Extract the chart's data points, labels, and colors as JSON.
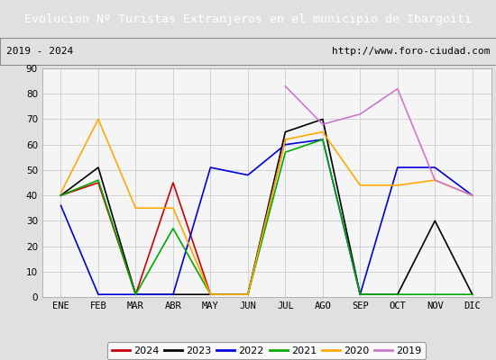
{
  "title": "Evolucion Nº Turistas Extranjeros en el municipio de Ibargoiti",
  "subtitle_left": "2019 - 2024",
  "subtitle_right": "http://www.foro-ciudad.com",
  "title_bg": "#4472c4",
  "title_color": "white",
  "months": [
    "ENE",
    "FEB",
    "MAR",
    "ABR",
    "MAY",
    "JUN",
    "JUL",
    "AGO",
    "SEP",
    "OCT",
    "NOV",
    "DIC"
  ],
  "ylim": [
    0,
    90
  ],
  "yticks": [
    0,
    10,
    20,
    30,
    40,
    50,
    60,
    70,
    80,
    90
  ],
  "series": {
    "2024": {
      "color": "#cc0000",
      "data": [
        40,
        45,
        1,
        45,
        1,
        1,
        62,
        null,
        null,
        null,
        null,
        null
      ]
    },
    "2023": {
      "color": "#000000",
      "data": [
        40,
        51,
        1,
        1,
        1,
        1,
        65,
        70,
        1,
        1,
        30,
        1
      ]
    },
    "2022": {
      "color": "#0000dd",
      "data": [
        36,
        1,
        1,
        1,
        51,
        48,
        60,
        62,
        1,
        51,
        51,
        40
      ]
    },
    "2021": {
      "color": "#00aa00",
      "data": [
        40,
        46,
        1,
        27,
        1,
        1,
        57,
        62,
        1,
        1,
        1,
        1
      ]
    },
    "2020": {
      "color": "#ffaa00",
      "data": [
        41,
        70,
        35,
        35,
        1,
        1,
        62,
        65,
        44,
        44,
        46,
        40
      ]
    },
    "2019": {
      "color": "#cc77cc",
      "data": [
        null,
        null,
        null,
        null,
        null,
        null,
        83,
        68,
        72,
        82,
        46,
        40
      ]
    }
  },
  "background_color": "#e0e0e0",
  "plot_bg": "#f5f5f5",
  "grid_color": "#cccccc",
  "legend_order": [
    "2024",
    "2023",
    "2022",
    "2021",
    "2020",
    "2019"
  ]
}
